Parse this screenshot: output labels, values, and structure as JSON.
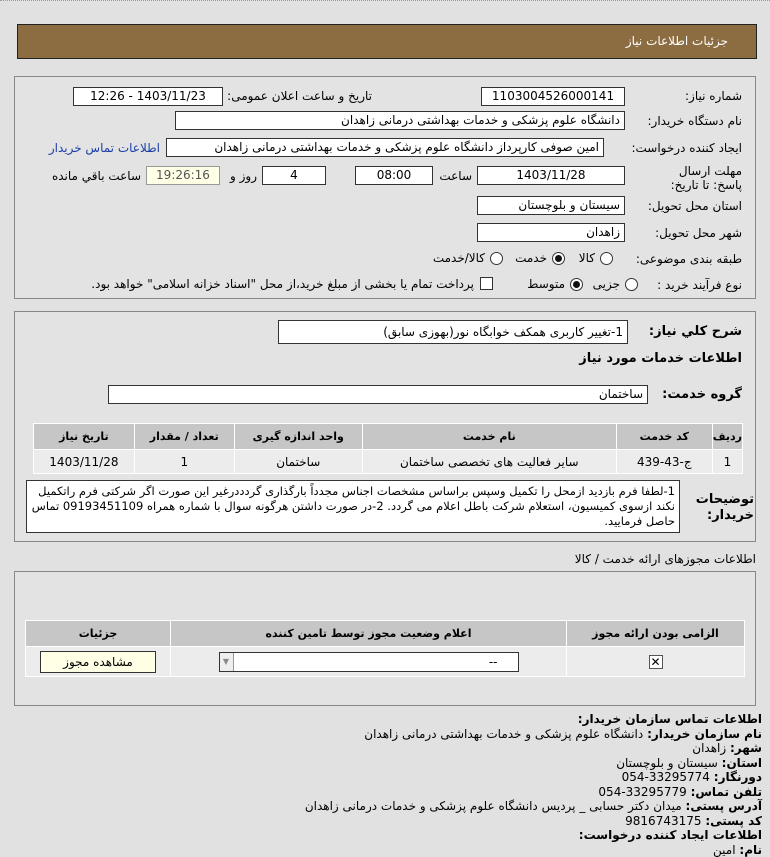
{
  "header": {
    "title": "جزئیات اطلاعات نیاز"
  },
  "form": {
    "need_number_label": "شماره نیاز:",
    "need_number": "1103004526000141",
    "announce_label": "تاریخ و ساعت اعلان عمومی:",
    "announce_value": "1403/11/23 - 12:26",
    "buyer_label": "نام دستگاه خریدار:",
    "buyer": "دانشگاه علوم پزشکی و خدمات بهداشتی درمانی زاهدان",
    "creator_label": "ایجاد کننده درخواست:",
    "creator": "امین صوفی کارپرداز دانشگاه علوم پزشکی و خدمات بهداشتی درمانی زاهدان",
    "contact_link": "اطلاعات تماس خریدار",
    "deadline_label": "مهلت ارسال پاسخ: تا تاریخ:",
    "deadline_date": "1403/11/28",
    "time_label": "ساعت",
    "deadline_time": "08:00",
    "days": "4",
    "days_label": "روز و",
    "remaining": "19:26:16",
    "remaining_label": "ساعت باقي مانده",
    "province_label": "استان محل تحویل:",
    "province": "سیستان و بلوچستان",
    "city_label": "شهر محل تحویل:",
    "city": "زاهدان",
    "category_label": "طبقه بندی موضوعی:",
    "category_options": [
      "کالا",
      "خدمت",
      "کالا/خدمت"
    ],
    "category_selected": "خدمت",
    "process_label": "نوع فرآیند خرید :",
    "process_options": [
      "جزیی",
      "متوسط"
    ],
    "process_selected": "متوسط",
    "payment_note": "پرداخت تمام یا بخشی از مبلغ خرید،از محل \"اسناد خزانه اسلامی\" خواهد بود."
  },
  "details": {
    "summary_label": "شرح کلي نیاز:",
    "summary": "1-تغییر کاربری همکف خوابگاه نور(بهوزی سابق)",
    "services_title": "اطلاعات خدمات مورد نیاز",
    "group_label": "گروه خدمت:",
    "group": "ساختمان",
    "table": {
      "headers": [
        "ردیف",
        "کد خدمت",
        "نام خدمت",
        "واحد اندازه گیری",
        "تعداد / مقدار",
        "تاریخ نیاز"
      ],
      "rows": [
        [
          "1",
          "ج-43-439",
          "سایر فعالیت های تخصصی ساختمان",
          "ساختمان",
          "1",
          "1403/11/28"
        ]
      ]
    },
    "notes_label": "توضیحات خریدار:",
    "notes": "1-لطفا فرم بازدید ازمحل را تکمیل وسپس براساس مشخصات اجناس مجدداً بارگذاری گردددرغیر این صورت اگر شرکتی فرم راتکمیل نکند ازسوی کمیسیون، استعلام شرکت باطل اعلام می گردد. 2-در صورت داشتن هرگونه سوال با شماره همراه 09193451109 تماس حاصل فرمایید."
  },
  "permits": {
    "title": "اطلاعات مجوزهای ارائه خدمت / کالا",
    "headers": [
      "الزامی بودن ارائه مجوز",
      "اعلام وضعیت مجوز توسط تامین کننده",
      "جزئیات"
    ],
    "select_value": "--",
    "view_button": "مشاهده مجوز"
  },
  "contact": {
    "title": "اطلاعات تماس سازمان خریدار:",
    "org_label": "نام سازمان خریدار:",
    "org": "دانشگاه علوم پزشکی و خدمات بهداشتی درمانی زاهدان",
    "city_label": "شهر:",
    "city": "زاهدان",
    "province_label": "استان:",
    "province": "سیستان و بلوچستان",
    "fax_label": "دورنگار:",
    "fax": "054-33295774",
    "phone_label": "تلفن تماس:",
    "phone": "054-33295779",
    "address_label": "آدرس پستی:",
    "address": "میدان دکتر حسابی _ پردیس دانشگاه علوم پزشکی و خدمات درمانی زاهدان",
    "postal_label": "کد پستی:",
    "postal": "9816743175",
    "creator_title": "اطلاعات ایجاد کننده درخواست:",
    "name_label": "نام:",
    "name": "امین"
  }
}
